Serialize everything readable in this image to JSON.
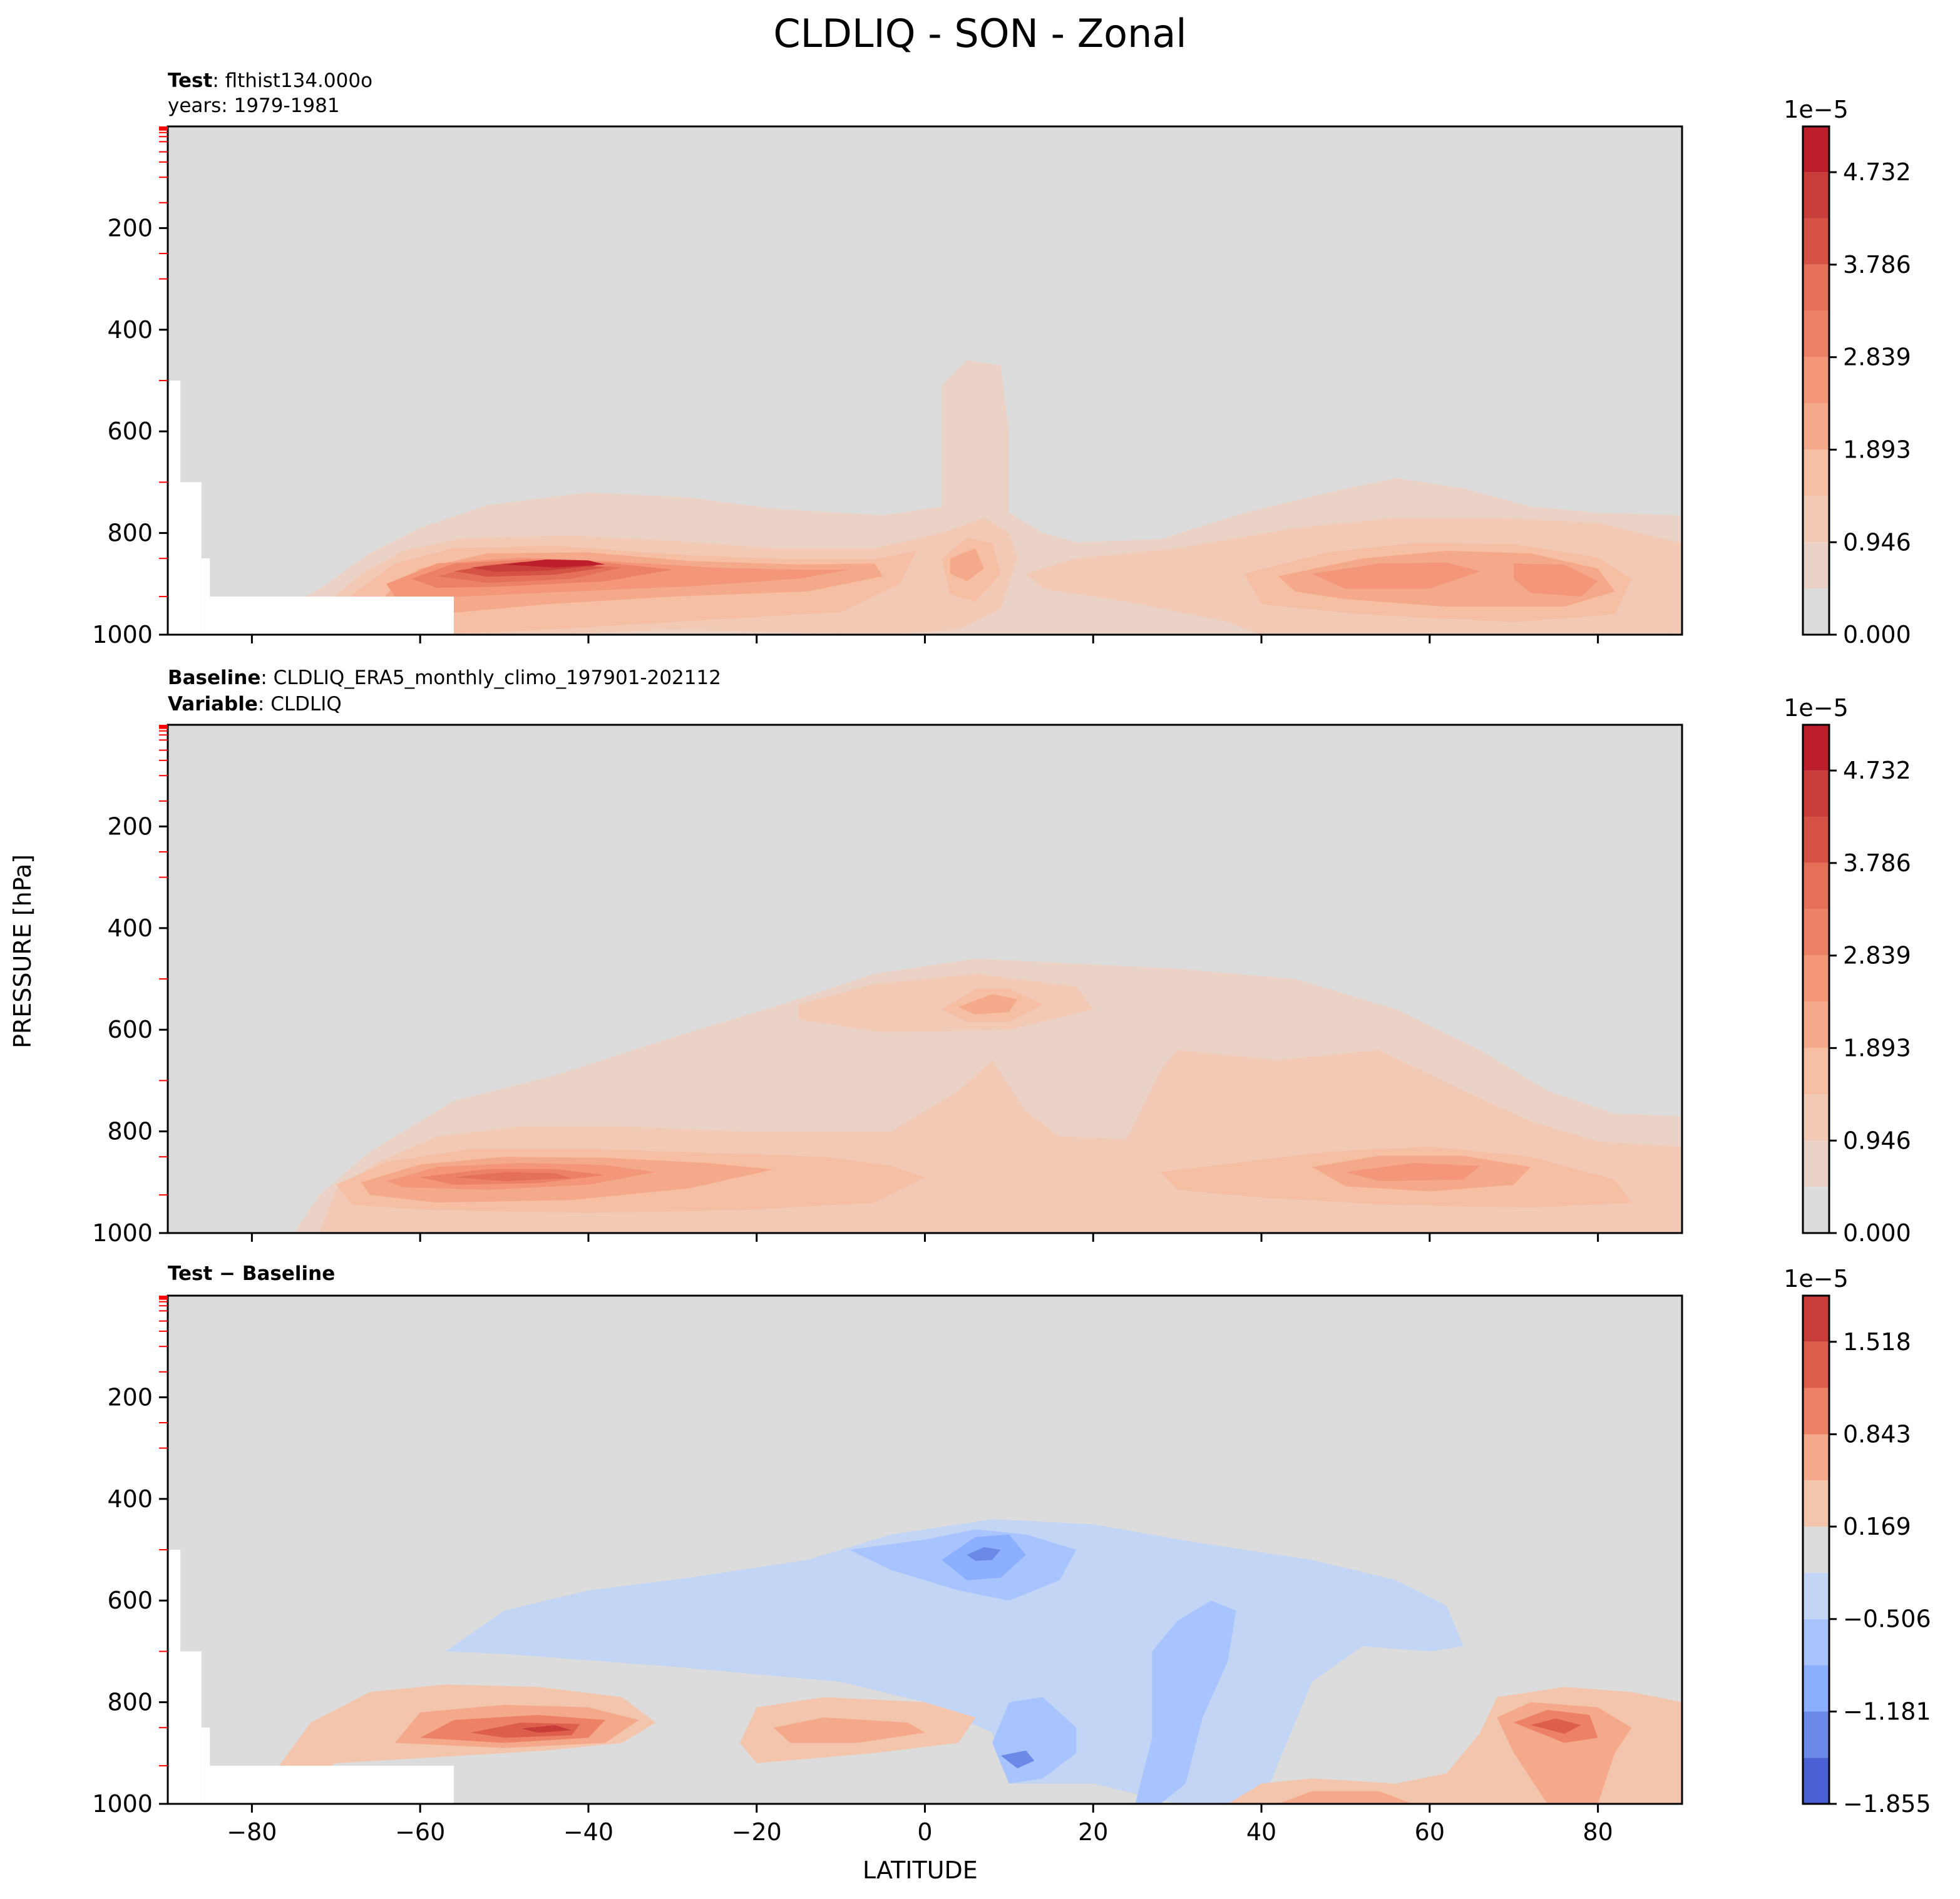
{
  "figure": {
    "title": "CLDLIQ - SON - Zonal",
    "ylabel": "PRESSURE [hPa]",
    "xlabel": "LATITUDE"
  },
  "panels": [
    {
      "id": "test",
      "label_line1_bold": "Test",
      "label_line1_text": ": flthist134.000o",
      "label_line2_text": "years: 1979-1981"
    },
    {
      "id": "baseline",
      "label_line1_bold": "Baseline",
      "label_line1_text": ": CLDLIQ_ERA5_monthly_climo_197901-202112",
      "label_line2_bold": "Variable",
      "label_line2_text": ": CLDLIQ"
    },
    {
      "id": "diff",
      "label_line1_bold": "Test − Baseline"
    }
  ],
  "chart_data": [
    {
      "type": "heatmap",
      "subtype": "filled-contour",
      "panel": "test",
      "xlim": [
        -90,
        90
      ],
      "ylim": [
        1000,
        0
      ],
      "yticks": [
        200,
        400,
        600,
        800,
        1000
      ],
      "xticks": [
        -80,
        -60,
        -40,
        -20,
        0,
        20,
        40,
        60,
        80
      ],
      "show_xtick_labels": false,
      "colorbar": {
        "exponent": "1e−5",
        "ticks": [
          "0.000",
          "0.946",
          "1.893",
          "2.839",
          "3.786",
          "4.732"
        ],
        "levels": [
          0.0,
          0.473,
          0.946,
          1.42,
          1.893,
          2.366,
          2.839,
          3.313,
          3.786,
          4.259,
          4.732,
          5.2
        ],
        "colors": [
          "#dddcdc",
          "#ead3c6",
          "#f2c9b4",
          "#f6bea2",
          "#f5a98b",
          "#f39778",
          "#ec8165",
          "#e57058",
          "#d65244",
          "#c83d39",
          "#bd1f2d"
        ]
      },
      "features": [
        {
          "desc": "SH midlatitude low cloud maximum",
          "lat": -45,
          "pressure": 850,
          "value": 5.0
        },
        {
          "desc": "ITCZ low cloud",
          "lat": 7,
          "pressure": 850,
          "value": 2.2
        },
        {
          "desc": "NH midlatitude low cloud",
          "lat": 55,
          "pressure": 870,
          "value": 2.9
        },
        {
          "desc": "NH high-latitude low cloud",
          "lat": 73,
          "pressure": 880,
          "value": 2.8
        }
      ],
      "masked_below_surface": [
        {
          "lat_range": [
            -90,
            -88.5
          ],
          "pressure_from": 500
        },
        {
          "lat_range": [
            -88.5,
            -86
          ],
          "pressure_from": 700
        },
        {
          "lat_range": [
            -86,
            -85
          ],
          "pressure_from": 850
        },
        {
          "lat_range": [
            -85,
            -56
          ],
          "pressure_from": 925
        }
      ]
    },
    {
      "type": "heatmap",
      "subtype": "filled-contour",
      "panel": "baseline",
      "xlim": [
        -90,
        90
      ],
      "ylim": [
        1000,
        0
      ],
      "yticks": [
        200,
        400,
        600,
        800,
        1000
      ],
      "xticks": [
        -80,
        -60,
        -40,
        -20,
        0,
        20,
        40,
        60,
        80
      ],
      "show_xtick_labels": false,
      "colorbar": {
        "exponent": "1e−5",
        "ticks": [
          "0.000",
          "0.946",
          "1.893",
          "2.839",
          "3.786",
          "4.732"
        ],
        "levels": [
          0.0,
          0.473,
          0.946,
          1.42,
          1.893,
          2.366,
          2.839,
          3.313,
          3.786,
          4.259,
          4.732,
          5.2
        ],
        "colors": [
          "#dddcdc",
          "#ead3c6",
          "#f2c9b4",
          "#f6bea2",
          "#f5a98b",
          "#f39778",
          "#ec8165",
          "#e57058",
          "#d65244",
          "#c83d39",
          "#bd1f2d"
        ]
      },
      "features": [
        {
          "desc": "SH midlatitude low cloud maximum",
          "lat": -50,
          "pressure": 900,
          "value": 4.3
        },
        {
          "desc": "tropical mid-level cloud",
          "lat": 7,
          "pressure": 550,
          "value": 2.3
        },
        {
          "desc": "NH midlatitude low cloud",
          "lat": 57,
          "pressure": 880,
          "value": 2.9
        }
      ],
      "masked_below_surface": []
    },
    {
      "type": "heatmap",
      "subtype": "filled-contour",
      "panel": "diff",
      "xlim": [
        -90,
        90
      ],
      "ylim": [
        1000,
        0
      ],
      "yticks": [
        200,
        400,
        600,
        800,
        1000
      ],
      "xticks": [
        -80,
        -60,
        -40,
        -20,
        0,
        20,
        40,
        60,
        80
      ],
      "show_xtick_labels": true,
      "colorbar": {
        "exponent": "1e−5",
        "ticks": [
          "−1.855",
          "−1.181",
          "−0.506",
          "0.169",
          "0.843",
          "1.518"
        ],
        "levels": [
          -1.855,
          -1.518,
          -1.181,
          -0.843,
          -0.506,
          -0.169,
          0.169,
          0.506,
          0.843,
          1.181,
          1.518,
          1.855
        ],
        "colors": [
          "#4961d2",
          "#6b8ae8",
          "#8caefe",
          "#a8c4fe",
          "#c3d5f4",
          "#dcdcdc",
          "#f4c5ad",
          "#f5a98b",
          "#ec8165",
          "#dd5f4b",
          "#c83d39"
        ]
      },
      "features": [
        {
          "desc": "SH midlatitude positive",
          "lat": -45,
          "pressure": 850,
          "value": 1.6
        },
        {
          "desc": "SH subtropical positive",
          "lat": -15,
          "pressure": 850,
          "value": 0.6
        },
        {
          "desc": "tropical mid-level negative",
          "lat": 7,
          "pressure": 510,
          "value": -1.6
        },
        {
          "desc": "tropical low-level negative",
          "lat": 10,
          "pressure": 910,
          "value": -1.0
        },
        {
          "desc": "subtropical negative column",
          "lat": 30,
          "pressure": 750,
          "value": -0.8
        },
        {
          "desc": "NH midlatitude near-surface positive",
          "lat": 50,
          "pressure": 990,
          "value": 0.9
        },
        {
          "desc": "NH high-latitude positive",
          "lat": 74,
          "pressure": 850,
          "value": 1.7
        }
      ],
      "masked_below_surface": [
        {
          "lat_range": [
            -90,
            -88.5
          ],
          "pressure_from": 500
        },
        {
          "lat_range": [
            -88.5,
            -86
          ],
          "pressure_from": 700
        },
        {
          "lat_range": [
            -86,
            -85
          ],
          "pressure_from": 850
        },
        {
          "lat_range": [
            -85,
            -56
          ],
          "pressure_from": 925
        }
      ]
    }
  ]
}
